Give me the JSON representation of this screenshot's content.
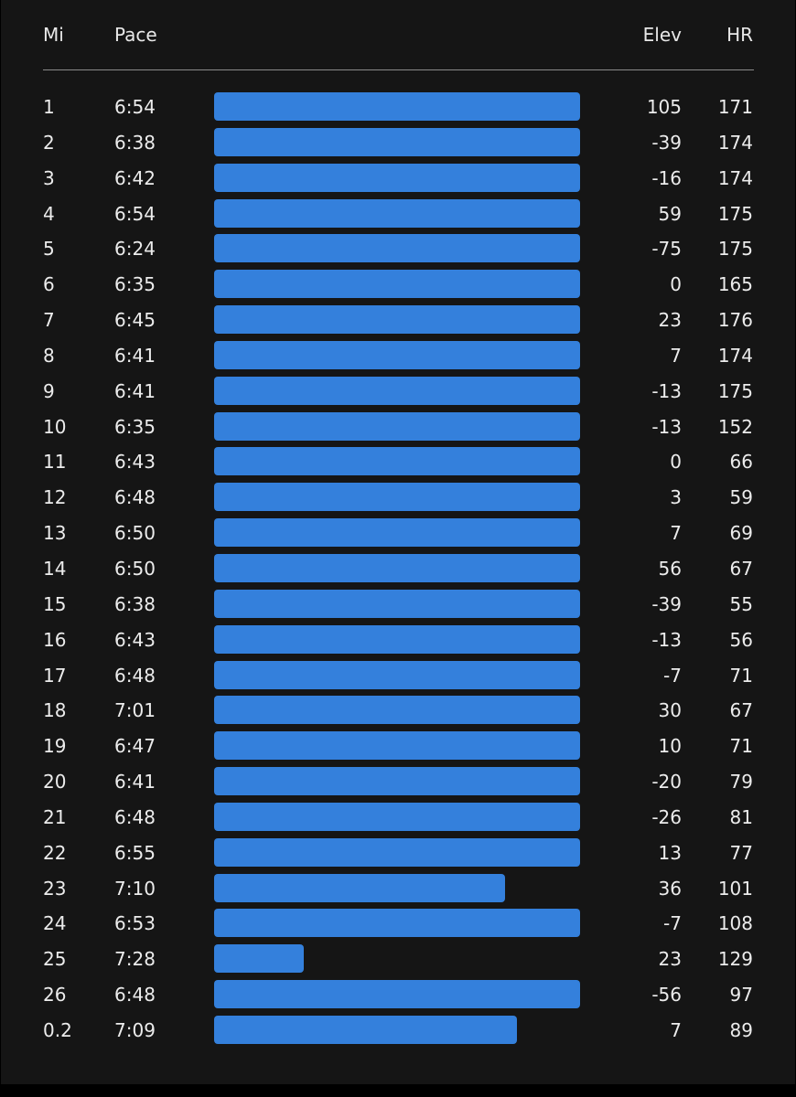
{
  "header": {
    "mile": "Mi",
    "pace": "Pace",
    "elev": "Elev",
    "hr": "HR"
  },
  "accent_color": "#3480dc",
  "splits": [
    {
      "mi": "1",
      "pace": "6:54",
      "elev": "105",
      "hr": "171"
    },
    {
      "mi": "2",
      "pace": "6:38",
      "elev": "-39",
      "hr": "174"
    },
    {
      "mi": "3",
      "pace": "6:42",
      "elev": "-16",
      "hr": "174"
    },
    {
      "mi": "4",
      "pace": "6:54",
      "elev": "59",
      "hr": "175"
    },
    {
      "mi": "5",
      "pace": "6:24",
      "elev": "-75",
      "hr": "175"
    },
    {
      "mi": "6",
      "pace": "6:35",
      "elev": "0",
      "hr": "165"
    },
    {
      "mi": "7",
      "pace": "6:45",
      "elev": "23",
      "hr": "176"
    },
    {
      "mi": "8",
      "pace": "6:41",
      "elev": "7",
      "hr": "174"
    },
    {
      "mi": "9",
      "pace": "6:41",
      "elev": "-13",
      "hr": "175"
    },
    {
      "mi": "10",
      "pace": "6:35",
      "elev": "-13",
      "hr": "152"
    },
    {
      "mi": "11",
      "pace": "6:43",
      "elev": "0",
      "hr": "66"
    },
    {
      "mi": "12",
      "pace": "6:48",
      "elev": "3",
      "hr": "59"
    },
    {
      "mi": "13",
      "pace": "6:50",
      "elev": "7",
      "hr": "69"
    },
    {
      "mi": "14",
      "pace": "6:50",
      "elev": "56",
      "hr": "67"
    },
    {
      "mi": "15",
      "pace": "6:38",
      "elev": "-39",
      "hr": "55"
    },
    {
      "mi": "16",
      "pace": "6:43",
      "elev": "-13",
      "hr": "56"
    },
    {
      "mi": "17",
      "pace": "6:48",
      "elev": "-7",
      "hr": "71"
    },
    {
      "mi": "18",
      "pace": "7:01",
      "elev": "30",
      "hr": "67"
    },
    {
      "mi": "19",
      "pace": "6:47",
      "elev": "10",
      "hr": "71"
    },
    {
      "mi": "20",
      "pace": "6:41",
      "elev": "-20",
      "hr": "79"
    },
    {
      "mi": "21",
      "pace": "6:48",
      "elev": "-26",
      "hr": "81"
    },
    {
      "mi": "22",
      "pace": "6:55",
      "elev": "13",
      "hr": "77"
    },
    {
      "mi": "23",
      "pace": "7:10",
      "elev": "36",
      "hr": "101"
    },
    {
      "mi": "24",
      "pace": "6:53",
      "elev": "-7",
      "hr": "108"
    },
    {
      "mi": "25",
      "pace": "7:28",
      "elev": "23",
      "hr": "129"
    },
    {
      "mi": "26",
      "pace": "6:48",
      "elev": "-56",
      "hr": "97"
    },
    {
      "mi": "0.2",
      "pace": "7:09",
      "elev": "7",
      "hr": "89"
    }
  ]
}
